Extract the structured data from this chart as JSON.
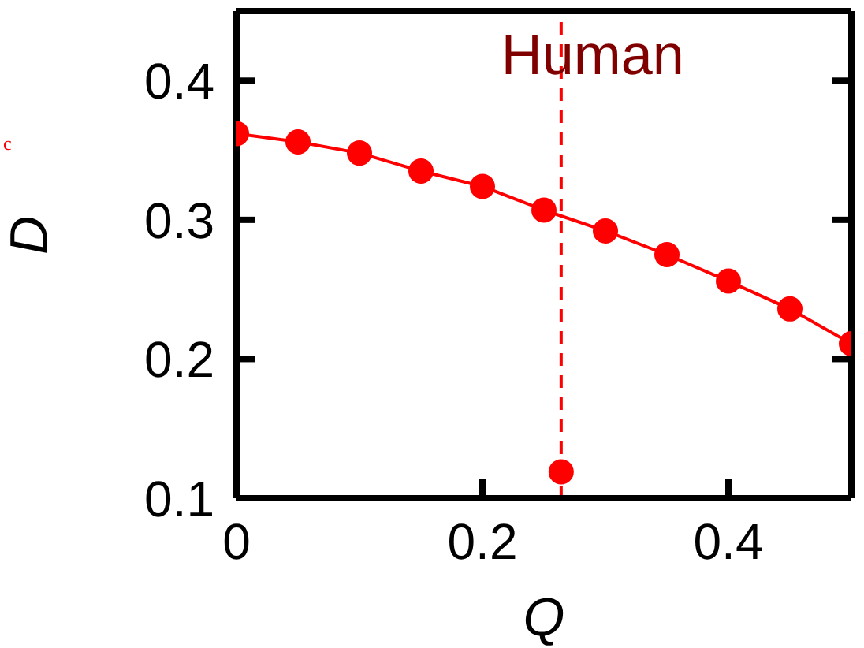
{
  "chart_data": {
    "type": "line",
    "xlabel": "Q",
    "ylabel": "D",
    "x": [
      0,
      0.05,
      0.1,
      0.15,
      0.2,
      0.25,
      0.3,
      0.35,
      0.4,
      0.45,
      0.5
    ],
    "xlim": [
      0,
      0.5
    ],
    "xticks": [
      0,
      0.2,
      0.4
    ],
    "ylim": [
      0.1,
      0.45
    ],
    "yticks": [
      0.1,
      0.2,
      0.3,
      0.4
    ],
    "marker": "circle",
    "line_style": "solid",
    "series": [
      {
        "color": "#ff0000",
        "values": [
          0.362,
          0.356,
          0.348,
          0.335,
          0.324,
          0.307,
          0.292,
          0.275,
          0.256,
          0.236,
          0.211
        ]
      },
      {
        "type": "scatter",
        "color": "#ff0000",
        "x": [
          0.264
        ],
        "values": [
          0.119
        ]
      }
    ],
    "ref_lines": [
      {
        "axis": "x",
        "value": 0.264,
        "label": "Human",
        "color": "#ff0000",
        "line_style": "dashed"
      }
    ],
    "annotations": [
      "c"
    ]
  }
}
